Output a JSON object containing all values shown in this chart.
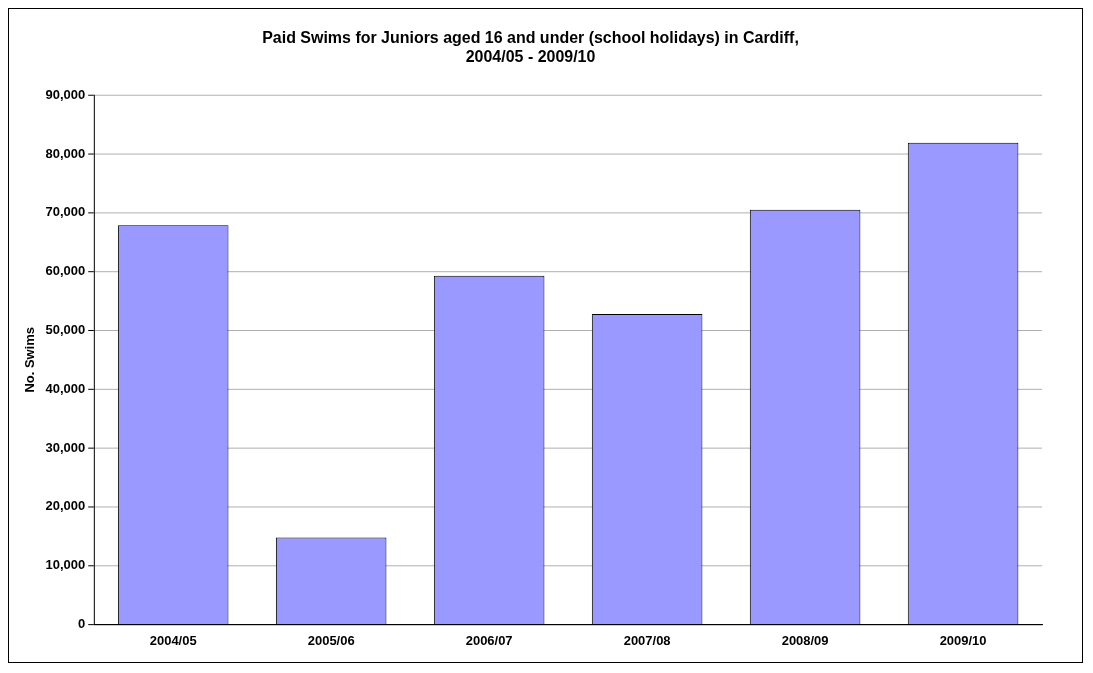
{
  "chart_data": {
    "type": "bar",
    "title": "Paid Swims for Juniors aged 16 and under (school holidays) in Cardiff,\n2004/05 - 2009/10",
    "ylabel": "No. Swims",
    "categories": [
      "2004/05",
      "2005/06",
      "2006/07",
      "2007/08",
      "2008/09",
      "2009/10"
    ],
    "values": [
      67900,
      14800,
      59300,
      52800,
      70500,
      81900
    ],
    "color": "#9999ff",
    "ylim": [
      0,
      90000
    ],
    "yticks": [
      {
        "value": 0,
        "label": "0"
      },
      {
        "value": 10000,
        "label": "10,000"
      },
      {
        "value": 20000,
        "label": "20,000"
      },
      {
        "value": 30000,
        "label": "30,000"
      },
      {
        "value": 40000,
        "label": "40,000"
      },
      {
        "value": 50000,
        "label": "50,000"
      },
      {
        "value": 60000,
        "label": "60,000"
      },
      {
        "value": 70000,
        "label": "70,000"
      },
      {
        "value": 80000,
        "label": "80,000"
      },
      {
        "value": 90000,
        "label": "90,000"
      }
    ],
    "grid": "y"
  }
}
